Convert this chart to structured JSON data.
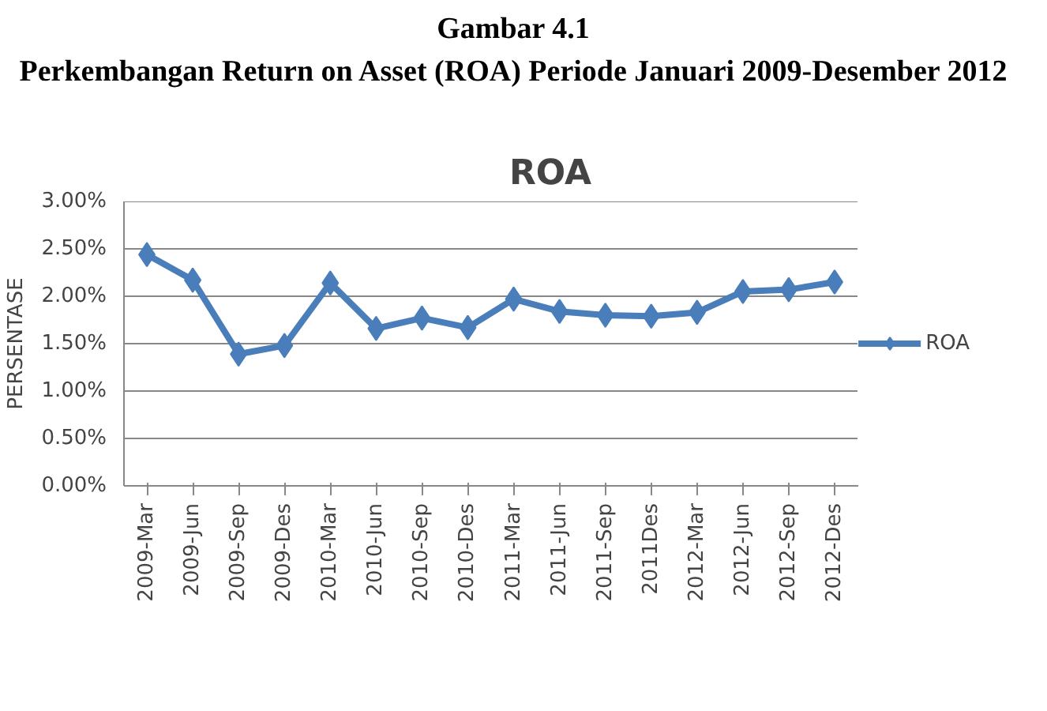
{
  "chart_data": {
    "type": "line",
    "title": "ROA",
    "ylabel": "PERSENTASE",
    "annotations": [
      "Gambar 4.1",
      "Perkembangan Return on Asset (ROA) Periode Januari 2009-Desember 2012"
    ],
    "categories": [
      "2009-Mar",
      "2009-Jun",
      "2009-Sep",
      "2009-Des",
      "2010-Mar",
      "2010-Jun",
      "2010-Sep",
      "2010-Des",
      "2011-Mar",
      "2011-Jun",
      "2011-Sep",
      "2011Des",
      "2012-Mar",
      "2012-Jun",
      "2012-Sep",
      "2012-Des"
    ],
    "series": [
      {
        "name": "ROA",
        "color": "#4a7ebb",
        "values": [
          2.44,
          2.17,
          1.39,
          1.48,
          2.14,
          1.66,
          1.77,
          1.67,
          1.97,
          1.84,
          1.8,
          1.79,
          1.83,
          2.05,
          2.07,
          2.15
        ]
      }
    ],
    "ylim": [
      0,
      3
    ],
    "yticks": [
      {
        "value": 0,
        "label": "0.00%"
      },
      {
        "value": 0.5,
        "label": "0.50%"
      },
      {
        "value": 1,
        "label": "1.00%"
      },
      {
        "value": 1.5,
        "label": "1.50%"
      },
      {
        "value": 2,
        "label": "2.00%"
      },
      {
        "value": 2.5,
        "label": "2.50%"
      },
      {
        "value": 3,
        "label": "3.00%"
      }
    ],
    "grid": "y",
    "legend": "right",
    "marker": "diamond",
    "line_style": "solid"
  }
}
